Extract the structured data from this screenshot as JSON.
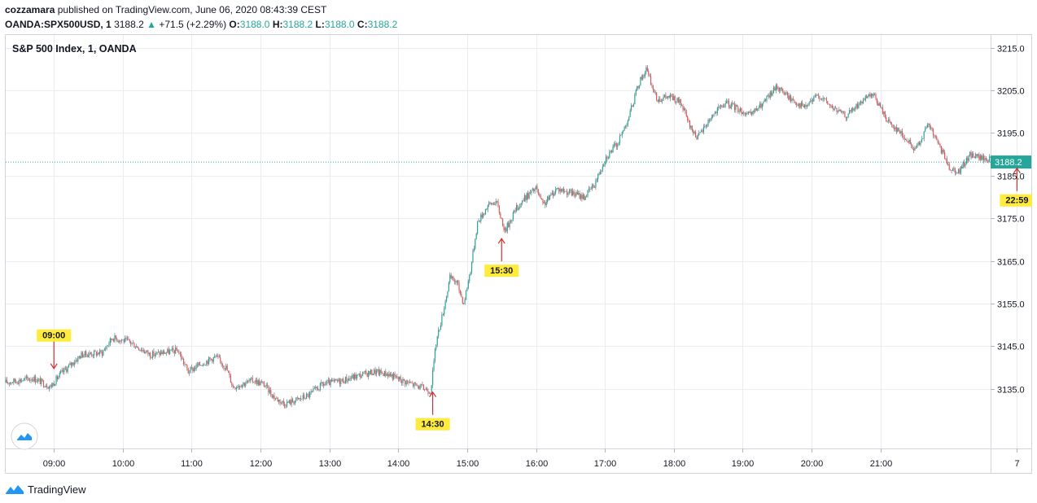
{
  "header": {
    "author": "cozzamara",
    "published_text": "published on TradingView.com, June 06, 2020 08:43:39 CEST",
    "symbol": "OANDA:SPX500USD, 1",
    "price": "3188.2",
    "change_arrow": "▲",
    "change": "+71.5 (+2.29%)",
    "o_label": "O:",
    "o_value": "3188.0",
    "h_label": "H:",
    "h_value": "3188.2",
    "l_label": "L:",
    "l_value": "3188.0",
    "c_label": "C:",
    "c_value": "3188.2"
  },
  "footer": {
    "brand": "TradingView"
  },
  "colors": {
    "up": "#26a69a",
    "down": "#ef5350",
    "wick": "#5d606b",
    "grid": "#e9ecf0",
    "annotation_bg": "#ffeb3b",
    "annotation_arrow": "#d32f2f",
    "price_line": "#26a69a",
    "brand": "#2962ff"
  },
  "chart_data": {
    "type": "candlestick",
    "title": "S&P 500 Index, 1, OANDA",
    "x_unit": "hours",
    "x_range": [
      8.3,
      22.6
    ],
    "y_range": [
      3121,
      3218
    ],
    "y_ticks": [
      3215.0,
      3205.0,
      3195.0,
      3185.0,
      3175.0,
      3165.0,
      3155.0,
      3145.0,
      3135.0
    ],
    "x_ticks": [
      {
        "t": 9,
        "label": "09:00"
      },
      {
        "t": 10,
        "label": "10:00"
      },
      {
        "t": 11,
        "label": "11:00"
      },
      {
        "t": 12,
        "label": "12:00"
      },
      {
        "t": 13,
        "label": "13:00"
      },
      {
        "t": 14,
        "label": "14:00"
      },
      {
        "t": 15,
        "label": "15:00"
      },
      {
        "t": 16,
        "label": "16:00"
      },
      {
        "t": 17,
        "label": "17:00"
      },
      {
        "t": 18,
        "label": "18:00"
      },
      {
        "t": 19,
        "label": "19:00"
      },
      {
        "t": 20,
        "label": "20:00"
      },
      {
        "t": 21,
        "label": "21:00"
      },
      {
        "t": 22.983,
        "label": "7"
      }
    ],
    "last_price": 3188.2,
    "last_price_label": "3188.2",
    "price_path": [
      [
        8.3,
        3136.5
      ],
      [
        8.7,
        3137.5
      ],
      [
        8.95,
        3135.5
      ],
      [
        9.1,
        3138.5
      ],
      [
        9.4,
        3143
      ],
      [
        9.7,
        3143.5
      ],
      [
        9.85,
        3147
      ],
      [
        10.1,
        3146
      ],
      [
        10.4,
        3143
      ],
      [
        10.8,
        3144
      ],
      [
        10.95,
        3139
      ],
      [
        11.15,
        3141
      ],
      [
        11.35,
        3142.5
      ],
      [
        11.5,
        3140
      ],
      [
        11.6,
        3135.5
      ],
      [
        11.9,
        3137
      ],
      [
        12.05,
        3136
      ],
      [
        12.2,
        3133
      ],
      [
        12.35,
        3131.5
      ],
      [
        12.55,
        3132.5
      ],
      [
        12.7,
        3133.5
      ],
      [
        12.9,
        3136
      ],
      [
        13.2,
        3137
      ],
      [
        13.4,
        3138
      ],
      [
        13.65,
        3139
      ],
      [
        13.85,
        3138.5
      ],
      [
        14.05,
        3137
      ],
      [
        14.3,
        3135.5
      ],
      [
        14.47,
        3134.5
      ],
      [
        14.55,
        3146
      ],
      [
        14.65,
        3153
      ],
      [
        14.75,
        3161
      ],
      [
        14.85,
        3160
      ],
      [
        14.95,
        3155
      ],
      [
        15.05,
        3163
      ],
      [
        15.15,
        3174
      ],
      [
        15.3,
        3178
      ],
      [
        15.42,
        3179
      ],
      [
        15.55,
        3172
      ],
      [
        15.7,
        3177
      ],
      [
        15.85,
        3180
      ],
      [
        16.0,
        3182
      ],
      [
        16.1,
        3178
      ],
      [
        16.3,
        3182
      ],
      [
        16.5,
        3181
      ],
      [
        16.7,
        3180
      ],
      [
        16.85,
        3183
      ],
      [
        17.0,
        3189
      ],
      [
        17.2,
        3193
      ],
      [
        17.35,
        3199
      ],
      [
        17.5,
        3207
      ],
      [
        17.6,
        3210
      ],
      [
        17.75,
        3203
      ],
      [
        17.95,
        3203.5
      ],
      [
        18.1,
        3202
      ],
      [
        18.25,
        3196
      ],
      [
        18.35,
        3194
      ],
      [
        18.55,
        3199
      ],
      [
        18.75,
        3202
      ],
      [
        18.9,
        3201
      ],
      [
        19.1,
        3199
      ],
      [
        19.3,
        3202
      ],
      [
        19.5,
        3206
      ],
      [
        19.7,
        3203
      ],
      [
        19.9,
        3201
      ],
      [
        20.1,
        3204
      ],
      [
        20.3,
        3201
      ],
      [
        20.5,
        3199
      ],
      [
        20.7,
        3202
      ],
      [
        20.9,
        3204
      ],
      [
        21.1,
        3198
      ],
      [
        21.3,
        3195
      ],
      [
        21.5,
        3191
      ],
      [
        21.7,
        3197
      ],
      [
        21.85,
        3192
      ],
      [
        22.0,
        3187
      ],
      [
        22.15,
        3186
      ],
      [
        22.3,
        3190
      ],
      [
        22.5,
        3189
      ],
      [
        22.7,
        3188.5
      ],
      [
        22.983,
        3188.2
      ]
    ],
    "annotations": [
      {
        "label": "09:00",
        "t": 9.0,
        "price": 3139,
        "label_position": "above"
      },
      {
        "label": "14:30",
        "t": 14.5,
        "price": 3135,
        "label_position": "below"
      },
      {
        "label": "15:30",
        "t": 15.5,
        "price": 3171,
        "label_position": "below"
      },
      {
        "label": "22:59",
        "t": 22.983,
        "price": 3187.5,
        "label_position": "below"
      }
    ]
  }
}
